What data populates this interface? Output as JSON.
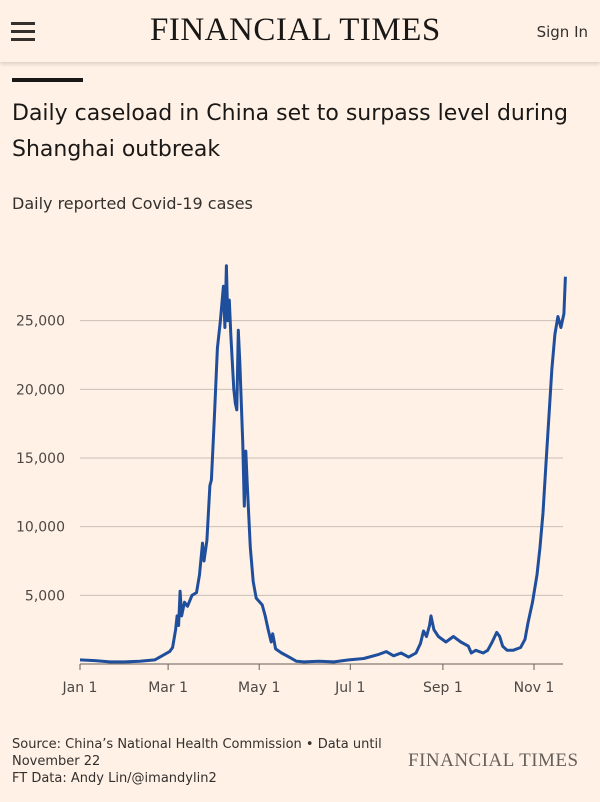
{
  "header": {
    "logo": "FINANCIAL TIMES",
    "sign_in": "Sign In"
  },
  "chart_data": {
    "type": "line",
    "title": "Daily caseload in China set to surpass level during Shanghai outbreak",
    "subtitle": "Daily reported Covid-19 cases",
    "color": "#1f4f9c",
    "grid": true,
    "x": [
      0,
      10,
      20,
      30,
      40,
      50,
      55,
      60,
      62,
      64,
      65,
      66,
      67,
      68,
      70,
      72,
      75,
      78,
      80,
      82,
      83,
      85,
      87,
      88,
      90,
      92,
      94,
      96,
      97,
      98,
      99,
      100,
      101,
      102,
      103,
      104,
      105,
      106,
      107,
      108,
      109,
      110,
      111,
      112,
      114,
      116,
      118,
      122,
      124,
      126,
      128,
      129,
      131,
      135,
      140,
      145,
      150,
      160,
      170,
      180,
      190,
      200,
      205,
      210,
      215,
      220,
      225,
      228,
      230,
      232,
      234,
      235,
      237,
      240,
      245,
      250,
      255,
      260,
      262,
      265,
      270,
      273,
      276,
      279,
      281,
      283,
      286,
      290,
      295,
      298,
      300,
      303,
      306,
      308,
      310,
      312,
      314,
      316,
      318,
      320,
      322,
      324,
      325
    ],
    "values": [
      300,
      250,
      150,
      150,
      200,
      300,
      600,
      900,
      1200,
      2500,
      3500,
      2800,
      5300,
      3500,
      4500,
      4200,
      5000,
      5200,
      6500,
      8800,
      7500,
      9000,
      13000,
      13400,
      18000,
      23000,
      25000,
      27500,
      24500,
      29000,
      25000,
      26500,
      24000,
      22000,
      20000,
      19000,
      18500,
      24300,
      22000,
      19000,
      16000,
      11500,
      15500,
      13000,
      8500,
      6000,
      4800,
      4300,
      3500,
      2500,
      1600,
      2200,
      1100,
      800,
      500,
      200,
      150,
      200,
      150,
      300,
      400,
      700,
      900,
      600,
      800,
      500,
      800,
      1500,
      2400,
      2000,
      2800,
      3500,
      2500,
      2000,
      1600,
      2000,
      1600,
      1300,
      800,
      1000,
      800,
      1000,
      1600,
      2300,
      2000,
      1300,
      1000,
      1000,
      1200,
      1800,
      3000,
      4500,
      6500,
      8500,
      11000,
      14500,
      18000,
      21500,
      24000,
      25300,
      24500,
      25500,
      28200
    ],
    "xlim": [
      0,
      326
    ],
    "xticks": [
      {
        "value": 0,
        "label": "Jan 1"
      },
      {
        "value": 59,
        "label": "Mar 1"
      },
      {
        "value": 120,
        "label": "May 1"
      },
      {
        "value": 181,
        "label": "Jul 1"
      },
      {
        "value": 243,
        "label": "Sep 1"
      },
      {
        "value": 304,
        "label": "Nov 1"
      }
    ],
    "ylim": [
      0,
      30000
    ],
    "yticks": [
      {
        "value": 5000,
        "label": "5,000"
      },
      {
        "value": 10000,
        "label": "10,000"
      },
      {
        "value": 15000,
        "label": "15,000"
      },
      {
        "value": 20000,
        "label": "20,000"
      },
      {
        "value": 25000,
        "label": "25,000"
      }
    ]
  },
  "footer": {
    "source": "Source: China’s National Health Commission • Data until November 22",
    "credit": "FT Data: Andy Lin/@imandylin2",
    "logo": "FINANCIAL TIMES"
  }
}
